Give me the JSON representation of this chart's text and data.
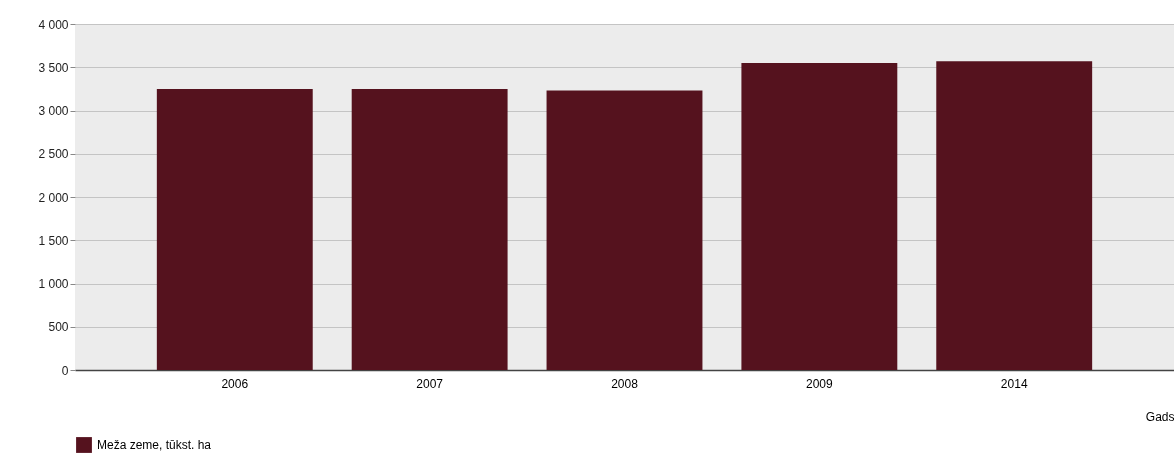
{
  "chart_data": {
    "type": "bar",
    "xlabel": "Gads",
    "categories": [
      "2006",
      "2007",
      "2008",
      "2009",
      "2014"
    ],
    "series": [
      {
        "name": "Meža zeme, tūkst. ha",
        "color": "#55121e",
        "values": [
          3250,
          3250,
          3230,
          3550,
          3570
        ]
      }
    ],
    "ylim": [
      0,
      4000
    ],
    "yticks": [
      0,
      500,
      {
        "value": 1000,
        "label": "1 000"
      },
      {
        "value": 1500,
        "label": "1 500"
      },
      {
        "value": 2000,
        "label": "2 000"
      },
      {
        "value": 2500,
        "label": "2 500"
      },
      {
        "value": 3000,
        "label": "3 000"
      },
      {
        "value": 3500,
        "label": "3 500"
      },
      {
        "value": 4000,
        "label": "4 000"
      }
    ],
    "grid": "y",
    "legend": "bottom"
  }
}
